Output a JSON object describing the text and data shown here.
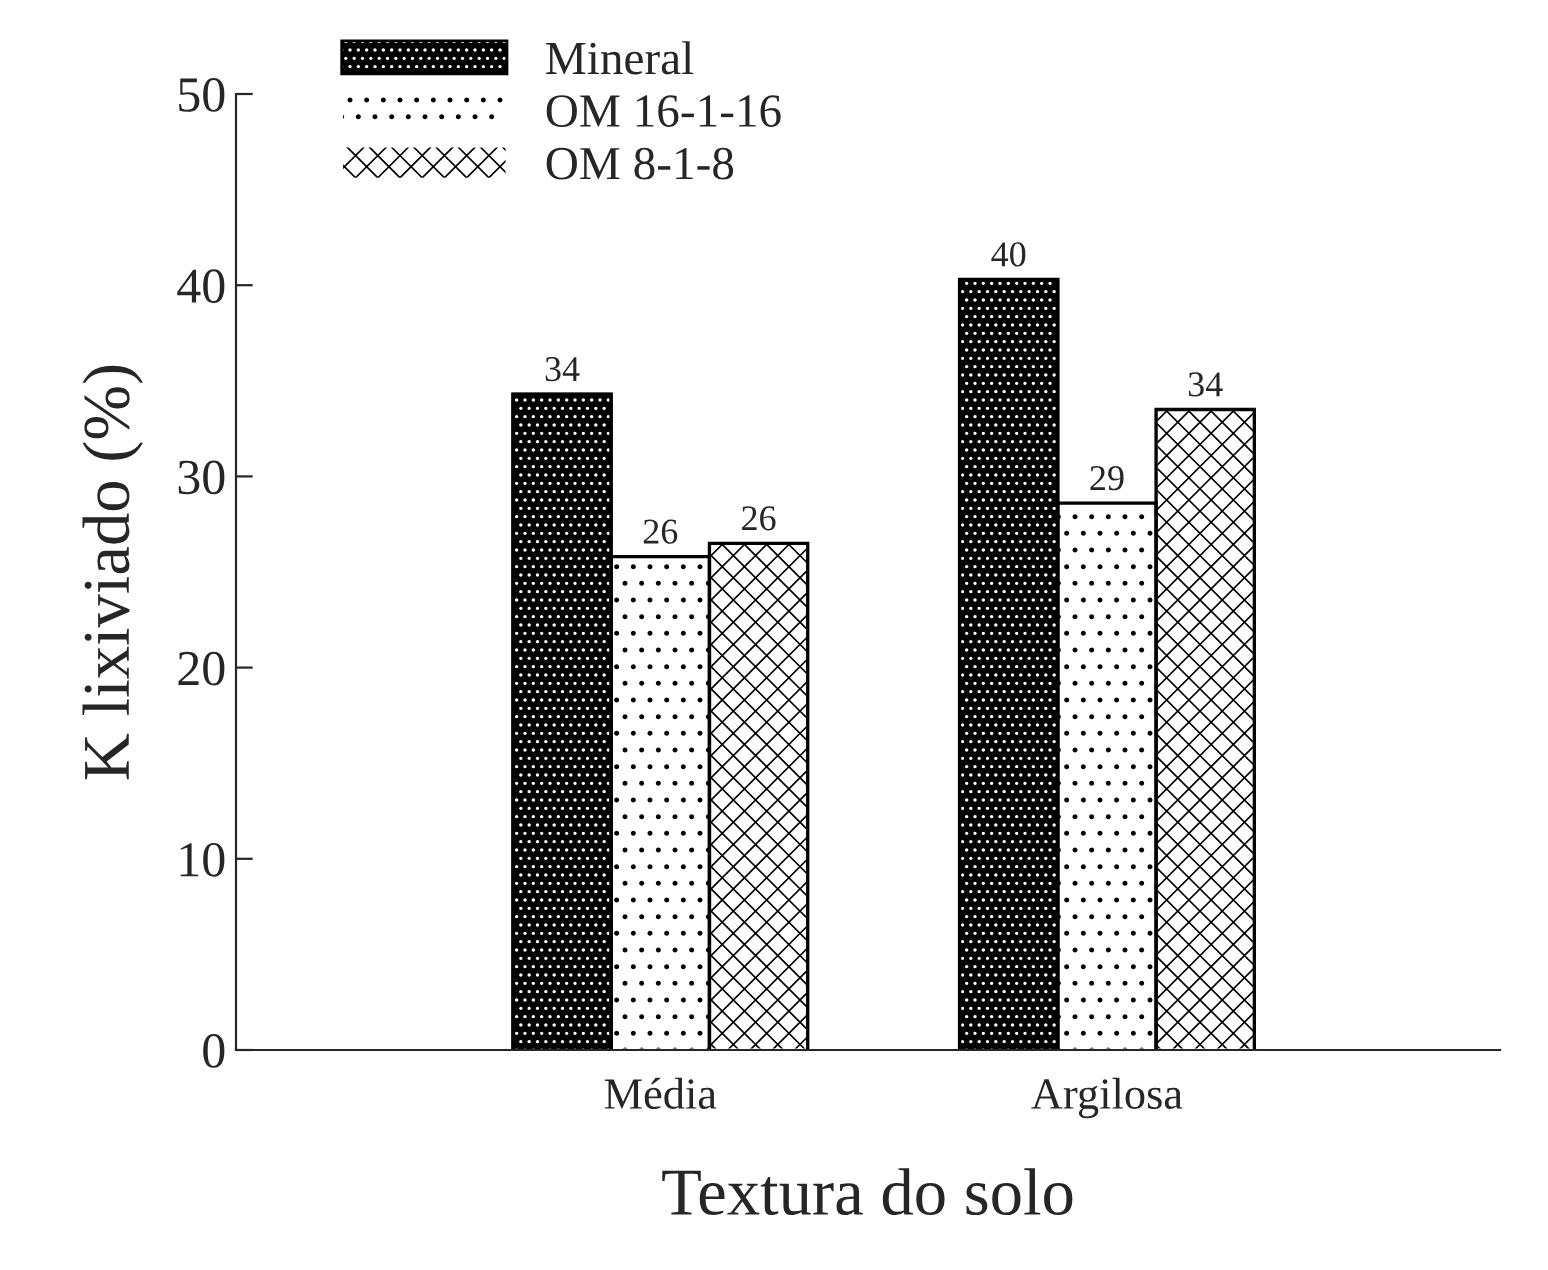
{
  "chart_data": {
    "type": "bar",
    "xlabel": "Textura do solo",
    "ylabel": "K lixiviado (%)",
    "categories": [
      "Média",
      "Argilosa"
    ],
    "series": [
      {
        "name": "Mineral",
        "color": "#000000",
        "values": [
          34.3,
          40.3
        ],
        "value_labels": [
          "34",
          "40"
        ]
      },
      {
        "name": "OM 16-1-16",
        "color": "#ffffff",
        "values": [
          25.8,
          28.6
        ],
        "value_labels": [
          "26",
          "29"
        ]
      },
      {
        "name": "OM 8-1-8",
        "color": "#ffffff",
        "values": [
          26.5,
          33.5
        ],
        "value_labels": [
          "26",
          "34"
        ]
      }
    ],
    "ylim": [
      0,
      50
    ],
    "yticks": [
      0,
      10,
      20,
      30,
      40,
      50
    ],
    "legend": "top left",
    "grid": false
  }
}
